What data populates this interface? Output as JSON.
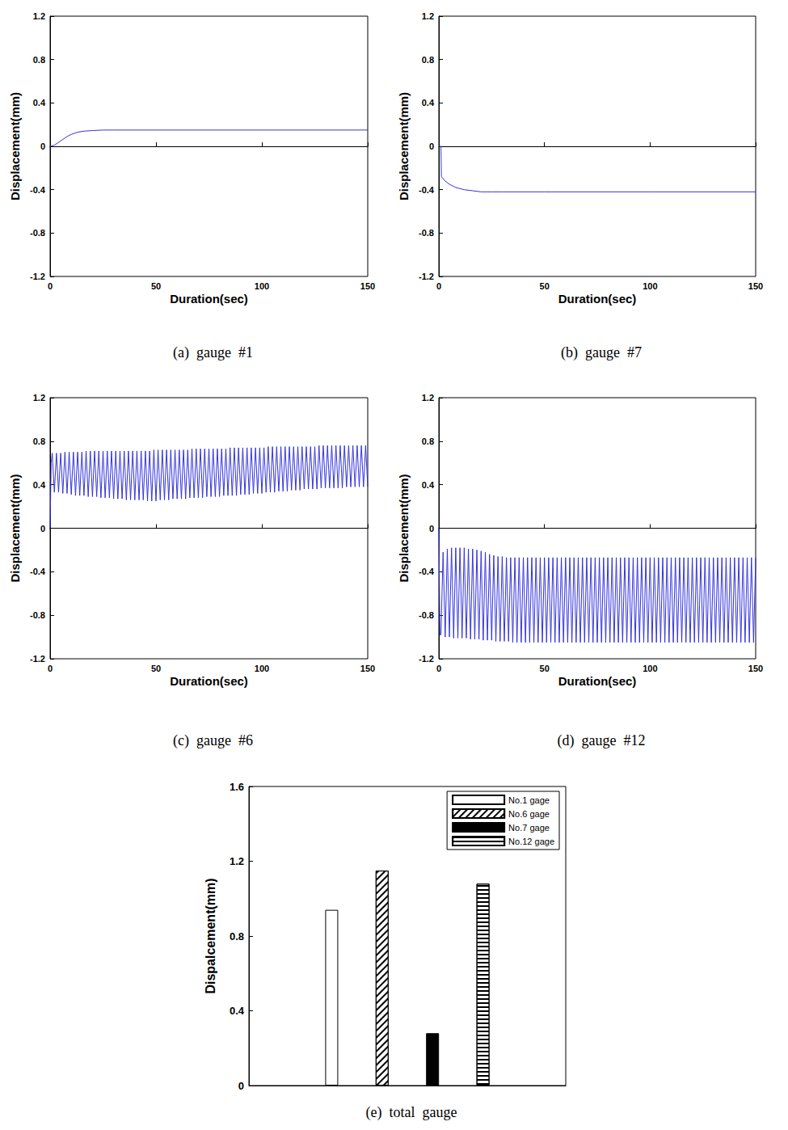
{
  "chart_data": [
    {
      "type": "line",
      "title": "(a)  gauge  #1",
      "x_label": "Duration(sec)",
      "y_label": "Displacement(mm)",
      "color": "#3333dd",
      "x": [
        0,
        2,
        5,
        8,
        10,
        13,
        16,
        20,
        25,
        30,
        50,
        100,
        150
      ],
      "values": [
        0,
        0.01,
        0.05,
        0.09,
        0.11,
        0.13,
        0.14,
        0.145,
        0.15,
        0.15,
        0.15,
        0.15,
        0.15
      ],
      "xlim": [
        0,
        150
      ],
      "ylim": [
        -1.2,
        1.2
      ],
      "xticks": [
        0,
        50,
        100,
        150
      ],
      "yticks": [
        -1.2,
        -0.8,
        -0.4,
        0,
        0.4,
        0.8,
        1.2
      ],
      "grid": false
    },
    {
      "type": "line",
      "title": "(b)  gauge  #7",
      "x_label": "Duration(sec)",
      "y_label": "Displacement(mm)",
      "color": "#3333dd",
      "x": [
        0,
        1,
        1.2,
        3,
        5,
        8,
        12,
        16,
        20,
        25,
        30,
        50,
        100,
        150
      ],
      "values": [
        0,
        0,
        -0.28,
        -0.32,
        -0.35,
        -0.38,
        -0.4,
        -0.41,
        -0.42,
        -0.42,
        -0.42,
        -0.42,
        -0.42,
        -0.42
      ],
      "xlim": [
        0,
        150
      ],
      "ylim": [
        -1.2,
        1.2
      ],
      "xticks": [
        0,
        50,
        100,
        150
      ],
      "yticks": [
        -1.2,
        -0.8,
        -0.4,
        0,
        0.4,
        0.8,
        1.2
      ],
      "grid": false
    },
    {
      "type": "line",
      "title": "(c)  gauge  #6",
      "x_label": "Duration(sec)",
      "y_label": "Displacement(mm)",
      "color": "#3333dd",
      "x": [
        0,
        0.5,
        1,
        2,
        3,
        4,
        5,
        6,
        7,
        8,
        9,
        10,
        11,
        12,
        13,
        14,
        15,
        16,
        17,
        18,
        19,
        20,
        21,
        22,
        23,
        24,
        25,
        26,
        27,
        28,
        29,
        30,
        31,
        32,
        33,
        34,
        35,
        36,
        37,
        38,
        39,
        40,
        41,
        42,
        43,
        44,
        45,
        46,
        47,
        48,
        49,
        50,
        51,
        52,
        53,
        54,
        55,
        56,
        57,
        58,
        59,
        60,
        61,
        62,
        63,
        64,
        65,
        66,
        67,
        68,
        69,
        70,
        71,
        72,
        73,
        74,
        75,
        76,
        77,
        78,
        79,
        80,
        81,
        82,
        83,
        84,
        85,
        86,
        87,
        88,
        89,
        90,
        91,
        92,
        93,
        94,
        95,
        96,
        97,
        98,
        99,
        100,
        101,
        102,
        103,
        104,
        105,
        106,
        107,
        108,
        109,
        110,
        111,
        112,
        113,
        114,
        115,
        116,
        117,
        118,
        119,
        120,
        121,
        122,
        123,
        124,
        125,
        126,
        127,
        128,
        129,
        130,
        131,
        132,
        133,
        134,
        135,
        136,
        137,
        138,
        139,
        140,
        141,
        142,
        143,
        144,
        145,
        146,
        147,
        148,
        149,
        150
      ],
      "values": [
        0,
        0.6,
        0.69,
        0.33,
        0.69,
        0.33,
        0.69,
        0.32,
        0.7,
        0.32,
        0.7,
        0.31,
        0.7,
        0.3,
        0.7,
        0.3,
        0.7,
        0.3,
        0.71,
        0.29,
        0.71,
        0.29,
        0.71,
        0.29,
        0.71,
        0.28,
        0.71,
        0.28,
        0.71,
        0.28,
        0.71,
        0.27,
        0.71,
        0.27,
        0.71,
        0.27,
        0.71,
        0.26,
        0.71,
        0.26,
        0.71,
        0.26,
        0.71,
        0.26,
        0.71,
        0.26,
        0.71,
        0.25,
        0.71,
        0.25,
        0.72,
        0.25,
        0.72,
        0.26,
        0.72,
        0.26,
        0.72,
        0.26,
        0.72,
        0.27,
        0.72,
        0.27,
        0.72,
        0.27,
        0.72,
        0.27,
        0.72,
        0.28,
        0.73,
        0.28,
        0.73,
        0.28,
        0.73,
        0.28,
        0.73,
        0.29,
        0.73,
        0.29,
        0.73,
        0.29,
        0.73,
        0.29,
        0.73,
        0.3,
        0.73,
        0.3,
        0.74,
        0.3,
        0.74,
        0.3,
        0.74,
        0.31,
        0.74,
        0.31,
        0.74,
        0.31,
        0.74,
        0.32,
        0.74,
        0.32,
        0.74,
        0.32,
        0.74,
        0.33,
        0.75,
        0.33,
        0.75,
        0.33,
        0.75,
        0.34,
        0.75,
        0.34,
        0.75,
        0.34,
        0.75,
        0.35,
        0.75,
        0.35,
        0.75,
        0.35,
        0.75,
        0.36,
        0.75,
        0.36,
        0.75,
        0.36,
        0.75,
        0.36,
        0.76,
        0.37,
        0.76,
        0.37,
        0.76,
        0.37,
        0.76,
        0.37,
        0.76,
        0.37,
        0.76,
        0.37,
        0.76,
        0.38,
        0.76,
        0.38,
        0.76,
        0.38,
        0.76,
        0.38,
        0.76,
        0.38,
        0.76,
        0.38
      ],
      "xlim": [
        0,
        150
      ],
      "ylim": [
        -1.2,
        1.2
      ],
      "xticks": [
        0,
        50,
        100,
        150
      ],
      "yticks": [
        -1.2,
        -0.8,
        -0.4,
        0,
        0.4,
        0.8,
        1.2
      ],
      "grid": false
    },
    {
      "type": "line",
      "title": "(d)  gauge  #12",
      "x_label": "Duration(sec)",
      "y_label": "Displacement(mm)",
      "color": "#3333dd",
      "x": [
        0,
        0.5,
        1,
        2,
        3,
        4,
        5,
        6,
        7,
        8,
        9,
        10,
        11,
        12,
        13,
        14,
        15,
        16,
        17,
        18,
        19,
        20,
        21,
        22,
        23,
        24,
        25,
        26,
        27,
        28,
        29,
        30,
        31,
        32,
        33,
        34,
        35,
        36,
        37,
        38,
        39,
        40,
        41,
        42,
        43,
        44,
        45,
        46,
        47,
        48,
        49,
        50,
        51,
        52,
        53,
        54,
        55,
        56,
        57,
        58,
        59,
        60,
        61,
        62,
        63,
        64,
        65,
        66,
        67,
        68,
        69,
        70,
        71,
        72,
        73,
        74,
        75,
        76,
        77,
        78,
        79,
        80,
        81,
        82,
        83,
        84,
        85,
        86,
        87,
        88,
        89,
        90,
        91,
        92,
        93,
        94,
        95,
        96,
        97,
        98,
        99,
        100,
        101,
        102,
        103,
        104,
        105,
        106,
        107,
        108,
        109,
        110,
        111,
        112,
        113,
        114,
        115,
        116,
        117,
        118,
        119,
        120,
        121,
        122,
        123,
        124,
        125,
        126,
        127,
        128,
        129,
        130,
        131,
        132,
        133,
        134,
        135,
        136,
        137,
        138,
        139,
        140,
        141,
        142,
        143,
        144,
        145,
        146,
        147,
        148,
        149,
        150
      ],
      "values": [
        0,
        -0.98,
        -0.98,
        -0.22,
        -1.0,
        -0.19,
        -1.0,
        -0.18,
        -1.01,
        -0.18,
        -1.01,
        -0.18,
        -1.01,
        -0.18,
        -1.01,
        -0.19,
        -1.02,
        -0.19,
        -1.02,
        -0.2,
        -1.02,
        -0.21,
        -1.03,
        -0.22,
        -1.03,
        -0.24,
        -1.03,
        -0.25,
        -1.04,
        -0.26,
        -1.04,
        -0.26,
        -1.04,
        -0.27,
        -1.04,
        -0.27,
        -1.05,
        -0.27,
        -1.05,
        -0.27,
        -1.05,
        -0.27,
        -1.05,
        -0.27,
        -1.05,
        -0.27,
        -1.05,
        -0.27,
        -1.05,
        -0.27,
        -1.05,
        -0.27,
        -1.05,
        -0.27,
        -1.05,
        -0.27,
        -1.05,
        -0.27,
        -1.05,
        -0.27,
        -1.05,
        -0.27,
        -1.05,
        -0.27,
        -1.05,
        -0.27,
        -1.05,
        -0.27,
        -1.05,
        -0.27,
        -1.05,
        -0.27,
        -1.05,
        -0.27,
        -1.05,
        -0.27,
        -1.05,
        -0.27,
        -1.05,
        -0.27,
        -1.05,
        -0.27,
        -1.05,
        -0.27,
        -1.05,
        -0.27,
        -1.05,
        -0.27,
        -1.05,
        -0.27,
        -1.05,
        -0.27,
        -1.05,
        -0.27,
        -1.05,
        -0.27,
        -1.05,
        -0.27,
        -1.05,
        -0.27,
        -1.05,
        -0.27,
        -1.05,
        -0.27,
        -1.05,
        -0.27,
        -1.05,
        -0.27,
        -1.05,
        -0.27,
        -1.05,
        -0.27,
        -1.05,
        -0.27,
        -1.05,
        -0.27,
        -1.05,
        -0.27,
        -1.05,
        -0.27,
        -1.05,
        -0.27,
        -1.05,
        -0.27,
        -1.05,
        -0.27,
        -1.05,
        -0.27,
        -1.05,
        -0.27,
        -1.05,
        -0.27,
        -1.05,
        -0.27,
        -1.05,
        -0.27,
        -1.05,
        -0.27,
        -1.05,
        -0.27,
        -1.05,
        -0.27,
        -1.05,
        -0.27,
        -1.05,
        -0.27,
        -1.05,
        -0.27,
        -1.05,
        -0.27,
        -1.05,
        -0.27
      ],
      "xlim": [
        0,
        150
      ],
      "ylim": [
        -1.2,
        1.2
      ],
      "xticks": [
        0,
        50,
        100,
        150
      ],
      "yticks": [
        -1.2,
        -0.8,
        -0.4,
        0,
        0.4,
        0.8,
        1.2
      ],
      "grid": false
    },
    {
      "type": "bar",
      "title": "(e)  total  gauge",
      "y_label": "Dispalcement(mm)",
      "categories": [
        null
      ],
      "series": [
        {
          "name": "No.1 gage",
          "color": "#ffffff",
          "values": [
            0.94
          ]
        },
        {
          "name": "No.6 gage",
          "color": "#ffffff",
          "values": [
            1.15
          ]
        },
        {
          "name": "No.7 gage",
          "color": "#000000",
          "values": [
            0.28
          ]
        },
        {
          "name": "No.12 gage",
          "color": "#ffffff",
          "values": [
            1.08
          ]
        }
      ],
      "ylim": [
        0,
        1.6
      ],
      "yticks": [
        0,
        0.4,
        0.8,
        1.2,
        1.6
      ],
      "legend": "upper right",
      "grid": false
    }
  ]
}
